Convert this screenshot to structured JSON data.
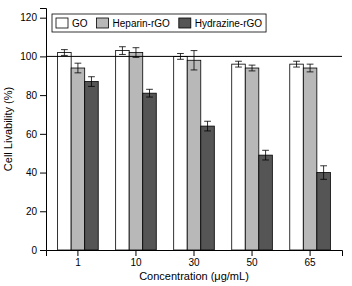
{
  "chart_data": {
    "type": "bar",
    "categories": [
      "1",
      "10",
      "30",
      "50",
      "65"
    ],
    "series": [
      {
        "name": "GO",
        "color": "#ffffff",
        "values": [
          102,
          103,
          100,
          96,
          96
        ],
        "errors": [
          1.5,
          2,
          1.5,
          1.5,
          1.5
        ]
      },
      {
        "name": "Heparin-rGO",
        "color": "#b8b8b8",
        "values": [
          94,
          102,
          98,
          94,
          94
        ],
        "errors": [
          2.5,
          2.5,
          5,
          1.5,
          2
        ]
      },
      {
        "name": "Hydrazine-rGO",
        "color": "#555555",
        "values": [
          87,
          81,
          64,
          49,
          40
        ],
        "errors": [
          2.5,
          2,
          2.5,
          2.5,
          3.5
        ]
      }
    ],
    "xlabel": "Concentration (μg/mL)",
    "ylabel": "Cell Livability (%)",
    "ylim": [
      0,
      125
    ],
    "yticks": [
      0,
      20,
      40,
      60,
      80,
      100,
      120
    ],
    "hline_y": 100,
    "legend": "upper left",
    "grid": false
  }
}
